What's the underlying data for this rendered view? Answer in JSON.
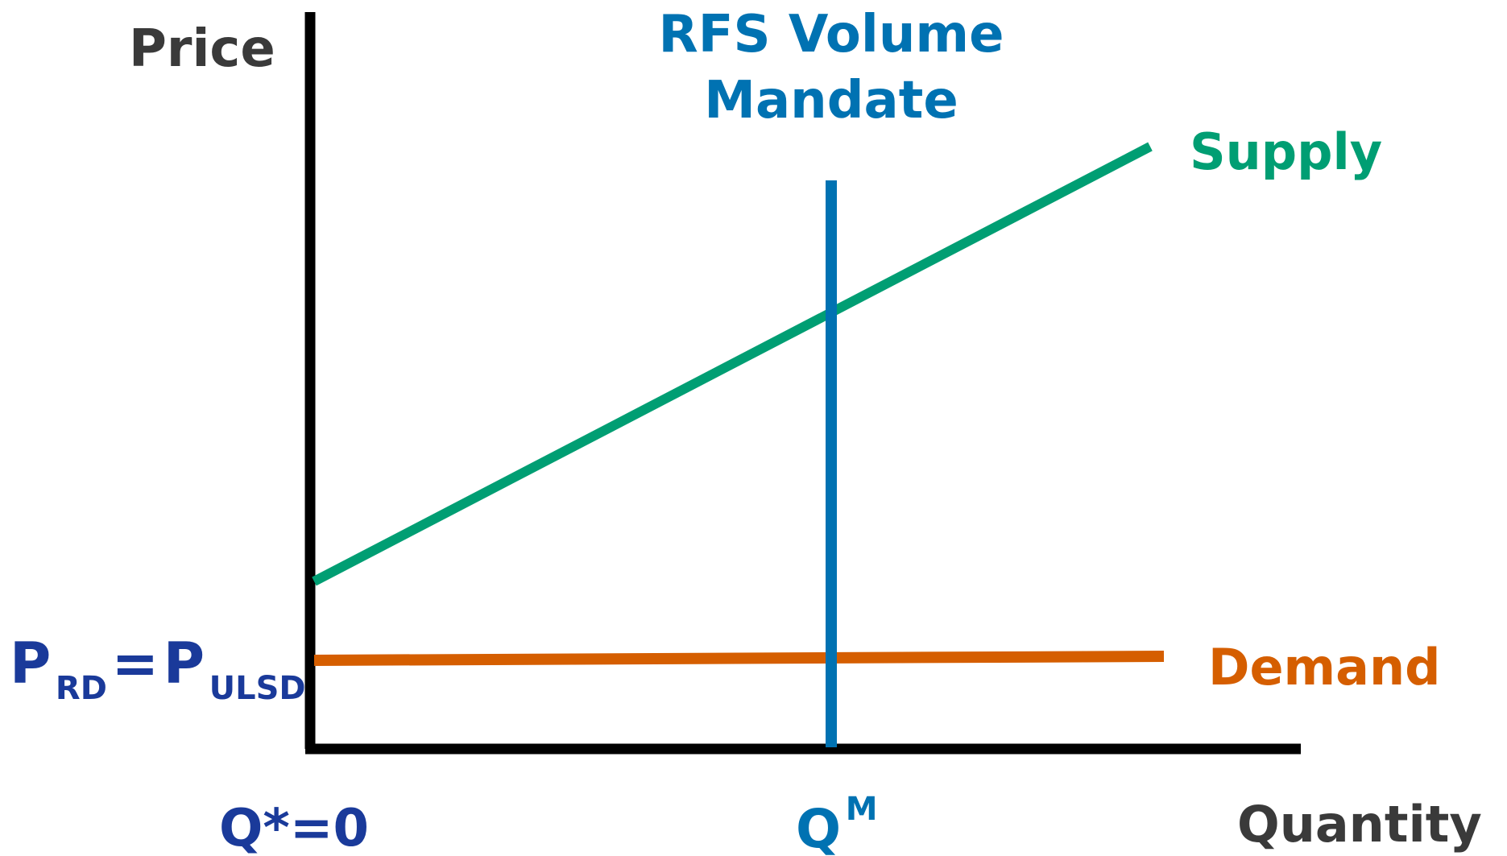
{
  "axes": {
    "y_label": "Price",
    "x_label": "Quantity"
  },
  "curves": {
    "supply": {
      "label": "Supply",
      "color": "#009E73"
    },
    "demand": {
      "label": "Demand",
      "color": "#D55E00"
    },
    "mandate": {
      "label_line1": "RFS Volume",
      "label_line2": "Mandate",
      "color": "#0072B2"
    }
  },
  "price_label": {
    "p1": "P",
    "p1_sub": "RD",
    "equals": "=",
    "p2": "P",
    "p2_sub": "ULSD",
    "color": "#1A3A9A"
  },
  "quantity_labels": {
    "q_star": "Q*=0",
    "q_star_color": "#1A3A9A",
    "q_m_base": "Q",
    "q_m_sup": "M",
    "q_m_color": "#0072B2"
  },
  "colors": {
    "axis": "#000000",
    "axis_label": "#3A3A3A"
  }
}
